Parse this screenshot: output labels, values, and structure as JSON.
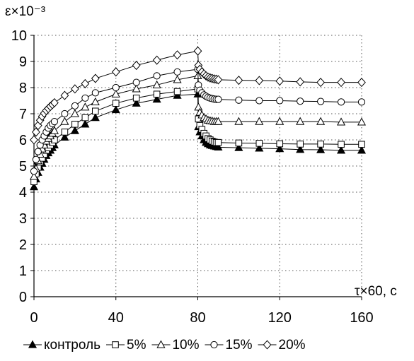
{
  "chart_data": {
    "type": "line",
    "xlabel": "τ×60, с",
    "ylabel": "ε×10⁻³",
    "xlim": [
      0,
      160
    ],
    "ylim": [
      0,
      10
    ],
    "x_ticks": [
      "0",
      "40",
      "80",
      "120",
      "160"
    ],
    "y_ticks": [
      "0",
      "1",
      "2",
      "3",
      "4",
      "5",
      "6",
      "7",
      "8",
      "9",
      "10"
    ],
    "grid": "dotted",
    "legend_position": "bottom",
    "colors": {
      "line": "#000000",
      "grid": "#555555"
    },
    "x": [
      0,
      1,
      2,
      3,
      4,
      5,
      6,
      7,
      8,
      9,
      10,
      15,
      20,
      25,
      30,
      40,
      50,
      60,
      70,
      80,
      80.3,
      81,
      82,
      83,
      84,
      85,
      86,
      87,
      88,
      89,
      90,
      100,
      110,
      120,
      130,
      140,
      150,
      160
    ],
    "series": [
      {
        "name": "контроль",
        "marker": "triangle-filled",
        "values": [
          4.2,
          4.5,
          4.75,
          4.95,
          5.1,
          5.25,
          5.4,
          5.5,
          5.6,
          5.7,
          5.8,
          6.1,
          6.35,
          6.6,
          6.85,
          7.15,
          7.4,
          7.55,
          7.7,
          7.75,
          6.5,
          6.3,
          6.15,
          6.0,
          5.9,
          5.85,
          5.8,
          5.78,
          5.76,
          5.74,
          5.72,
          5.7,
          5.68,
          5.66,
          5.63,
          5.62,
          5.6,
          5.6
        ]
      },
      {
        "name": "5%",
        "marker": "square-open",
        "values": [
          4.4,
          4.7,
          4.95,
          5.15,
          5.3,
          5.45,
          5.6,
          5.7,
          5.8,
          5.9,
          6.0,
          6.3,
          6.6,
          6.85,
          7.1,
          7.4,
          7.6,
          7.75,
          7.85,
          7.95,
          6.8,
          6.55,
          6.4,
          6.25,
          6.15,
          6.05,
          6.0,
          5.95,
          5.92,
          5.9,
          5.9,
          5.88,
          5.87,
          5.85,
          5.84,
          5.84,
          5.83,
          5.83
        ]
      },
      {
        "name": "10%",
        "marker": "triangle-open",
        "values": [
          4.6,
          4.9,
          5.2,
          5.45,
          5.65,
          5.8,
          5.95,
          6.05,
          6.15,
          6.25,
          6.35,
          6.7,
          7.0,
          7.25,
          7.45,
          7.75,
          7.95,
          8.1,
          8.3,
          8.45,
          7.25,
          7.05,
          6.95,
          6.85,
          6.8,
          6.75,
          6.73,
          6.72,
          6.7,
          6.7,
          6.7,
          6.7,
          6.7,
          6.7,
          6.7,
          6.7,
          6.68,
          6.68
        ]
      },
      {
        "name": "15%",
        "marker": "circle-open",
        "values": [
          4.8,
          5.25,
          5.55,
          5.8,
          6.0,
          6.15,
          6.3,
          6.45,
          6.55,
          6.62,
          6.7,
          7.0,
          7.3,
          7.6,
          7.8,
          8.0,
          8.2,
          8.45,
          8.6,
          8.7,
          8.1,
          7.9,
          7.8,
          7.72,
          7.67,
          7.63,
          7.6,
          7.58,
          7.56,
          7.55,
          7.55,
          7.52,
          7.5,
          7.5,
          7.48,
          7.47,
          7.45,
          7.45
        ]
      },
      {
        "name": "20%",
        "marker": "diamond-open",
        "values": [
          6.0,
          6.3,
          6.55,
          6.75,
          6.9,
          7.02,
          7.12,
          7.2,
          7.28,
          7.35,
          7.42,
          7.7,
          7.95,
          8.15,
          8.35,
          8.6,
          8.85,
          9.05,
          9.25,
          9.4,
          8.85,
          8.7,
          8.6,
          8.52,
          8.45,
          8.4,
          8.37,
          8.35,
          8.33,
          8.32,
          8.3,
          8.28,
          8.27,
          8.25,
          8.22,
          8.2,
          8.2,
          8.2
        ]
      }
    ]
  }
}
